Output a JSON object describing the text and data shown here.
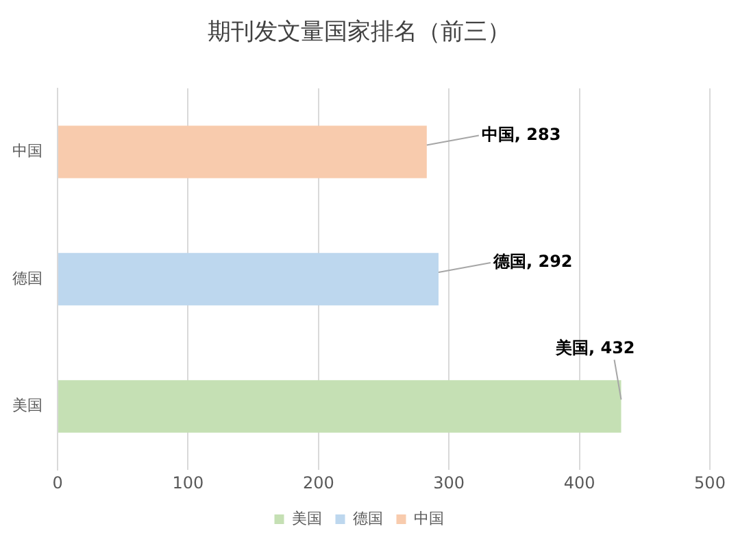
{
  "chart_data": {
    "type": "bar",
    "orientation": "horizontal",
    "title": "期刊发文量国家排名（前三）",
    "categories": [
      "中国",
      "德国",
      "美国"
    ],
    "series": [
      {
        "name": "美国",
        "color": "#c5e0b4",
        "values": [
          null,
          null,
          432
        ],
        "value_labels": [
          null,
          null,
          "美国, 432"
        ]
      },
      {
        "name": "德国",
        "color": "#bdd7ee",
        "values": [
          null,
          292,
          null
        ],
        "value_labels": [
          null,
          "德国, 292",
          null
        ]
      },
      {
        "name": "中国",
        "color": "#f8cbad",
        "values": [
          283,
          null,
          null
        ],
        "value_labels": [
          "中国, 283",
          null,
          null
        ]
      }
    ],
    "xlim": [
      0,
      500
    ],
    "xticks": [
      0,
      100,
      200,
      300,
      400,
      500
    ],
    "grid": "x",
    "legend": "bottom"
  }
}
